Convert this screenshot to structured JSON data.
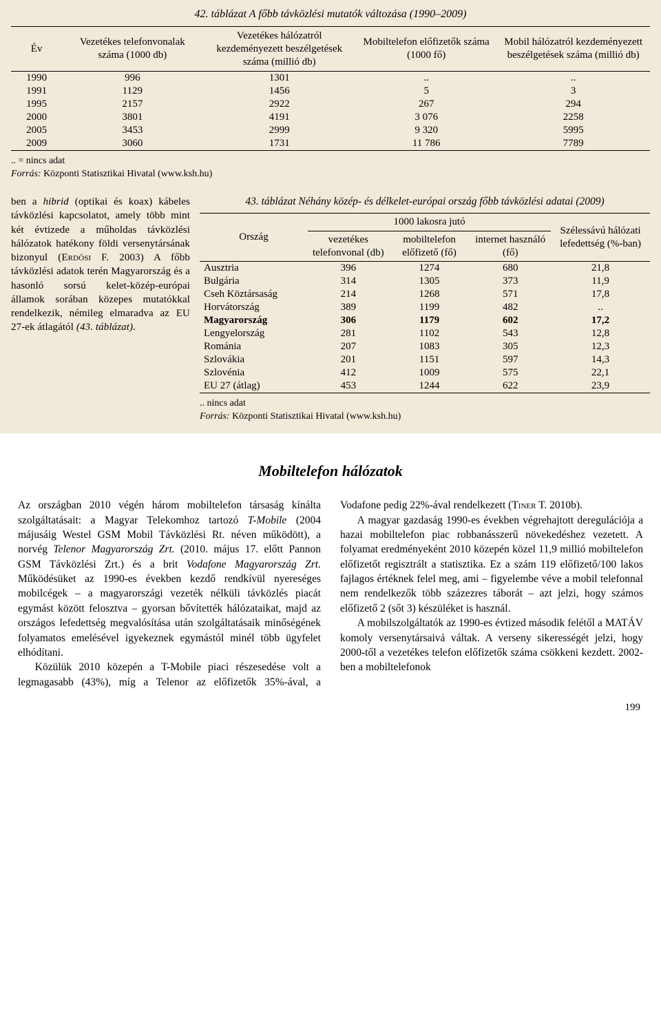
{
  "table42": {
    "title_label": "42. táblázat",
    "title_rest": " A főbb távközlési mutatók változása (1990–2009)",
    "columns": [
      "Év",
      "Vezetékes telefonvonalak száma (1000 db)",
      "Vezetékes hálózatról kezdeményezett beszélgetések száma (millió db)",
      "Mobiltelefon előfizetők száma (1000 fő)",
      "Mobil hálózatról kezdeményezett beszélgetések száma (millió db)"
    ],
    "rows": [
      [
        "1990",
        "996",
        "1301",
        "..",
        ".."
      ],
      [
        "1991",
        "1129",
        "1456",
        "5",
        "3"
      ],
      [
        "1995",
        "2157",
        "2922",
        "267",
        "294"
      ],
      [
        "2000",
        "3801",
        "4191",
        "3 076",
        "2258"
      ],
      [
        "2005",
        "3453",
        "2999",
        "9 320",
        "5995"
      ],
      [
        "2009",
        "3060",
        "1731",
        "11 786",
        "7789"
      ]
    ],
    "footnote1": ".. = nincs adat",
    "footnote2_it": "Forrás:",
    "footnote2_rest": " Központi Statisztikai Hivatal (www.ksh.hu)"
  },
  "para_left": {
    "text_a": "ben a ",
    "text_b": "hibrid",
    "text_c": " (optikai és koax) kábeles távközlési kapcsolatot, amely több mint két évtizede a műholdas távközlési hálózatok hatékony földi versenytársának bizonyul (",
    "text_d": "Erdősi F.",
    "text_e": " 2003) A főbb távközlési adatok terén Magyarország és a hasonló sorsú kelet-közép-európai államok sorában közepes mutatókkal rendelkezik, némileg elmaradva az EU 27-ek átlagától ",
    "text_f": "(43. táblázat)",
    "text_g": "."
  },
  "table43": {
    "title_label": "43. táblázat",
    "title_rest": " Néhány közép- és délkelet-európai ország főbb távközlési adatai (2009)",
    "supercol": "1000 lakosra jutó",
    "columns": [
      "Ország",
      "vezetékes telefonvonal (db)",
      "mobiltelefon előfizető (fő)",
      "internet használó (fő)",
      "Szélessávú hálózati lefedettség (%-ban)"
    ],
    "rows": [
      {
        "c": [
          "Ausztria",
          "396",
          "1274",
          "680",
          "21,8"
        ],
        "bold": false
      },
      {
        "c": [
          "Bulgária",
          "314",
          "1305",
          "373",
          "11,9"
        ],
        "bold": false
      },
      {
        "c": [
          "Cseh Köztársaság",
          "214",
          "1268",
          "571",
          "17,8"
        ],
        "bold": false
      },
      {
        "c": [
          "Horvátország",
          "389",
          "1199",
          "482",
          ".."
        ],
        "bold": false
      },
      {
        "c": [
          "Magyarország",
          "306",
          "1179",
          "602",
          "17,2"
        ],
        "bold": true
      },
      {
        "c": [
          "Lengyelország",
          "281",
          "1102",
          "543",
          "12,8"
        ],
        "bold": false
      },
      {
        "c": [
          "Románia",
          "207",
          "1083",
          "305",
          "12,3"
        ],
        "bold": false
      },
      {
        "c": [
          "Szlovákia",
          "201",
          "1151",
          "597",
          "14,3"
        ],
        "bold": false
      },
      {
        "c": [
          "Szlovénia",
          "412",
          "1009",
          "575",
          "22,1"
        ],
        "bold": false
      },
      {
        "c": [
          "EU 27 (átlag)",
          "453",
          "1244",
          "622",
          "23,9"
        ],
        "bold": false
      }
    ],
    "footnote1": ".. nincs adat",
    "footnote2_it": "Forrás:",
    "footnote2_rest": " Központi Statisztikai Hivatal (www.ksh.hu)"
  },
  "section_heading": "Mobiltelefon hálózatok",
  "body": {
    "p1_a": "Az országban 2010 végén három mobiltelefon társaság kínálta szolgáltatásait: a Magyar Telekomhoz tartozó ",
    "p1_b": "T-Mobile",
    "p1_c": " (2004 májusáig Westel GSM Mobil Távközlési Rt. néven működött), a norvég ",
    "p1_d": "Telenor Magyarország Zrt.",
    "p1_e": " (2010. május 17. előtt Pannon GSM Távközlési Zrt.) és a brit ",
    "p1_f": "Vodafone Magyarország Zrt.",
    "p1_g": " Működésüket az 1990-es években kezdő rendkívül nyereséges mobilcégek – a magyarországi vezeték nélküli távközlés piacát egymást között felosztva – gyorsan bővítették hálózataikat, majd az országos lefedettség megvalósítása után szolgáltatásaik minőségének folyamatos emelésével igyekeznek egymástól minél több ügyfelet elhódítani.",
    "p2": "Közülük 2010 közepén a T-Mobile piaci részesedése volt a legmagasabb (43%), míg a Telenor az előfizetők 35%-ával, a Vodafone pedig 22%-ával rendelkezett (",
    "p2_sc": "Tiner T.",
    "p2_b": " 2010b).",
    "p3": "A magyar gazdaság 1990-es években végrehajtott deregulációja a hazai mobiltelefon piac robbanásszerű növekedéshez vezetett. A folyamat eredményeként 2010 közepén közel 11,9 millió mobiltelefon előfizetőt regisztrált a statisztika. Ez a szám 119 előfizető/100 lakos fajlagos értéknek felel meg, ami – figyelembe véve a mobil telefonnal nem rendelkezők több százezres táborát – azt jelzi, hogy számos előfizető 2 (sőt 3) készüléket is használ.",
    "p4": "A mobilszolgáltatók az 1990-es évtized második felétől a MATÁV komoly versenytársaivá váltak. A verseny sikerességét jelzi, hogy 2000-től a vezetékes telefon előfizetők száma csökkeni kezdett. 2002-ben a mobiltelefonok"
  },
  "page_number": "199",
  "style": {
    "panel_bg": "#f1eadb",
    "text_color": "#000000",
    "border_color": "#000000",
    "body_fontsize": 15.5,
    "table_fontsize": 15,
    "title_fontsize": 16,
    "heading_fontsize": 22
  }
}
